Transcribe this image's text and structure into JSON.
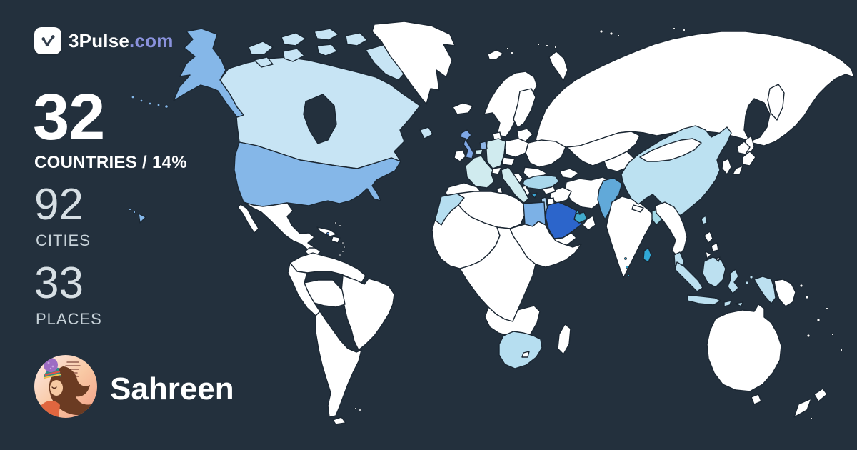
{
  "brand": {
    "name": "3Pulse",
    "suffix": ".com"
  },
  "stats": {
    "countries": {
      "value": "32",
      "label": "COUNTRIES / 14%"
    },
    "cities": {
      "value": "92",
      "label": "CITIES"
    },
    "places": {
      "value": "33",
      "label": "PLACES"
    }
  },
  "user": {
    "name": "Sahreen"
  },
  "theme": {
    "background": "#23303d",
    "text_primary": "#ffffff",
    "text_secondary": "#d7dfe4",
    "label_secondary": "#c7d2d9",
    "brand_accent": "#8a92dd"
  },
  "map": {
    "ocean": "#23303d",
    "land": "#ffffff",
    "border": "#1b2733",
    "visited": [
      {
        "id": "usa",
        "color": "#85b7e8"
      },
      {
        "id": "canada",
        "color": "#c7e4f4"
      },
      {
        "id": "caribbean",
        "color": "#5b8fd4"
      },
      {
        "id": "uk",
        "color": "#7ea7e5"
      },
      {
        "id": "netherlands",
        "color": "#8fb6e7"
      },
      {
        "id": "belgium",
        "color": "#d0ebef"
      },
      {
        "id": "france",
        "color": "#d0ebef"
      },
      {
        "id": "germany",
        "color": "#d0ebef"
      },
      {
        "id": "italy",
        "color": "#d0ebef"
      },
      {
        "id": "turkey",
        "color": "#a9d7eb"
      },
      {
        "id": "cyprus",
        "color": "#3ba2d0"
      },
      {
        "id": "israel",
        "color": "#abcfeb"
      },
      {
        "id": "morocco",
        "color": "#b6def0"
      },
      {
        "id": "egypt",
        "color": "#7cb1e6"
      },
      {
        "id": "saudi-arabia",
        "color": "#2c65cb"
      },
      {
        "id": "uae",
        "color": "#41abcd"
      },
      {
        "id": "pakistan",
        "color": "#61a9d9"
      },
      {
        "id": "bangladesh",
        "color": "#a2d8e6"
      },
      {
        "id": "sri-lanka",
        "color": "#30a8d6"
      },
      {
        "id": "maldives",
        "color": "#30a8d6"
      },
      {
        "id": "china",
        "color": "#bce1f1"
      },
      {
        "id": "taiwan",
        "color": "#bce1f1"
      },
      {
        "id": "malaysia",
        "color": "#bce0f0"
      },
      {
        "id": "indonesia",
        "color": "#bce0f0"
      },
      {
        "id": "south-africa",
        "color": "#b6def0"
      }
    ]
  }
}
